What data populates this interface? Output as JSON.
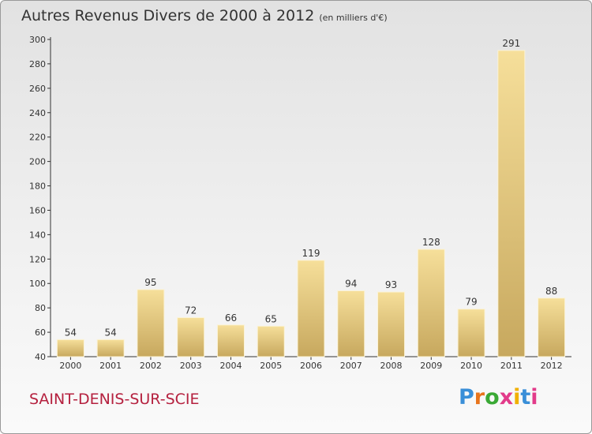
{
  "header": {
    "title": "Autres Revenus Divers de 2000 à 2012",
    "subtitle": "(en milliers d'€)"
  },
  "footer": {
    "city": "SAINT-DENIS-SUR-SCIE",
    "logo": {
      "text": "Proxiti",
      "letter_colors": [
        "#3a8fd8",
        "#e8741c",
        "#3aa935",
        "#e23b8a",
        "#f0b000",
        "#3a8fd8",
        "#e23b8a"
      ]
    }
  },
  "colors": {
    "bar_light": "#f6df9a",
    "bar_dark": "#c7a85e",
    "city": "#b5213f",
    "axis": "#333333"
  },
  "chart_data": {
    "type": "bar",
    "title": "Autres Revenus Divers de 2000 à 2012",
    "subtitle": "(en milliers d'€)",
    "categories": [
      "2000",
      "2001",
      "2002",
      "2003",
      "2004",
      "2005",
      "2006",
      "2007",
      "2008",
      "2009",
      "2010",
      "2011",
      "2012"
    ],
    "values": [
      54,
      54,
      95,
      72,
      66,
      65,
      119,
      94,
      93,
      128,
      79,
      291,
      88
    ],
    "ylim": [
      40,
      300
    ],
    "yticks": [
      40,
      60,
      80,
      100,
      120,
      140,
      160,
      180,
      200,
      220,
      240,
      260,
      280,
      300
    ],
    "grid": false,
    "legend": "none"
  }
}
